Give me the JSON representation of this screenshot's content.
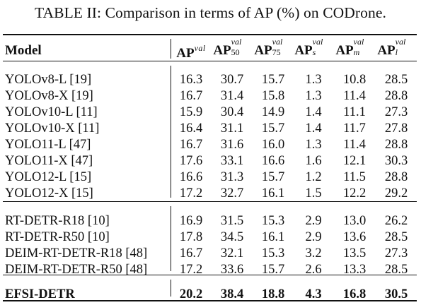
{
  "caption": "TABLE II: Comparison in terms of AP (%) on CODrone.",
  "header": {
    "model": "Model",
    "ap": "AP",
    "val": "val",
    "sub50": "50",
    "sub75": "75",
    "subs": "s",
    "subm": "m",
    "subl": "l"
  },
  "rows": [
    {
      "name": "YOLOv8-L [19]",
      "ap": "16.3",
      "ap50": "30.7",
      "ap75": "15.7",
      "aps": "1.3",
      "apm": "10.8",
      "apl": "28.5"
    },
    {
      "name": "YOLOv8-X [19]",
      "ap": "16.7",
      "ap50": "31.4",
      "ap75": "15.8",
      "aps": "1.3",
      "apm": "11.4",
      "apl": "28.8"
    },
    {
      "name": "YOLOv10-L [11]",
      "ap": "15.9",
      "ap50": "30.4",
      "ap75": "14.9",
      "aps": "1.4",
      "apm": "11.1",
      "apl": "27.3"
    },
    {
      "name": "YOLOv10-X [11]",
      "ap": "16.4",
      "ap50": "31.1",
      "ap75": "15.7",
      "aps": "1.4",
      "apm": "11.7",
      "apl": "27.8"
    },
    {
      "name": "YOLO11-L [47]",
      "ap": "16.7",
      "ap50": "31.6",
      "ap75": "16.0",
      "aps": "1.3",
      "apm": "11.4",
      "apl": "28.8"
    },
    {
      "name": "YOLO11-X [47]",
      "ap": "17.6",
      "ap50": "33.1",
      "ap75": "16.6",
      "aps": "1.6",
      "apm": "12.1",
      "apl": "30.3"
    },
    {
      "name": "YOLO12-L [15]",
      "ap": "16.6",
      "ap50": "31.3",
      "ap75": "15.7",
      "aps": "1.2",
      "apm": "11.5",
      "apl": "28.8"
    },
    {
      "name": "YOLO12-X [15]",
      "ap": "17.2",
      "ap50": "32.7",
      "ap75": "16.1",
      "aps": "1.5",
      "apm": "12.2",
      "apl": "29.2"
    },
    {
      "name": "RT-DETR-R18 [10]",
      "ap": "16.9",
      "ap50": "31.5",
      "ap75": "15.3",
      "aps": "2.9",
      "apm": "13.0",
      "apl": "26.2"
    },
    {
      "name": "RT-DETR-R50 [10]",
      "ap": "17.8",
      "ap50": "34.5",
      "ap75": "16.1",
      "aps": "2.9",
      "apm": "13.6",
      "apl": "28.5"
    },
    {
      "name": "DEIM-RT-DETR-R18 [48]",
      "ap": "16.7",
      "ap50": "32.1",
      "ap75": "15.3",
      "aps": "3.2",
      "apm": "13.5",
      "apl": "27.3"
    },
    {
      "name": "DEIM-RT-DETR-R50 [48]",
      "ap": "17.2",
      "ap50": "33.6",
      "ap75": "15.7",
      "aps": "2.6",
      "apm": "13.3",
      "apl": "28.5"
    },
    {
      "name": "EFSI-DETR",
      "ap": "20.2",
      "ap50": "38.4",
      "ap75": "18.8",
      "aps": "4.3",
      "apm": "16.8",
      "apl": "30.5"
    }
  ]
}
